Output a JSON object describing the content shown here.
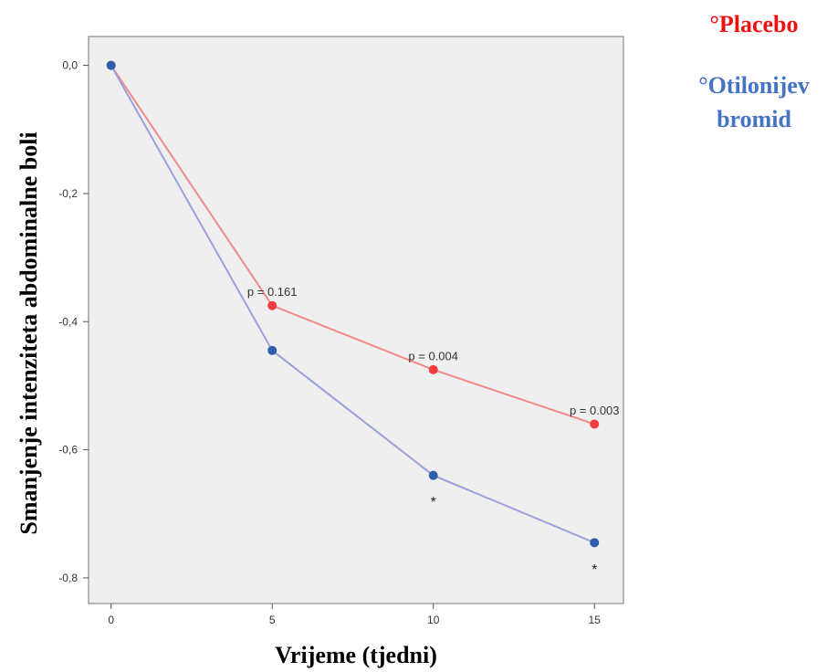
{
  "chart_data": {
    "type": "line",
    "xlabel": "Vrijeme (tjedni)",
    "ylabel": "Smanjenje intenziteta abdominalne boli",
    "x": [
      0,
      5,
      10,
      15
    ],
    "x_ticks": [
      "0",
      "5",
      "10",
      "15"
    ],
    "y_ticks": [
      "0,0",
      "-0,2",
      "-0,4",
      "-0,6",
      "-0,8"
    ],
    "y_tick_values": [
      0,
      -0.2,
      -0.4,
      -0.6,
      -0.8
    ],
    "xlim": [
      -0.7,
      15.9
    ],
    "ylim": [
      -0.84,
      0.045
    ],
    "grid": false,
    "legend_position": "top-right",
    "series": [
      {
        "name": "°Placebo",
        "color": "#f03c3c",
        "line_color": "#f08a8a",
        "values": [
          0.0,
          -0.375,
          -0.475,
          -0.56
        ]
      },
      {
        "name": "°Otilonijev bromid",
        "color": "#2f5faa",
        "line_color": "#9aa0dc",
        "values": [
          0.0,
          -0.445,
          -0.64,
          -0.745
        ]
      }
    ],
    "annotations": [
      {
        "text": "p = 0.161",
        "x": 5,
        "y": -0.36
      },
      {
        "text": "p = 0.004",
        "x": 10,
        "y": -0.46
      },
      {
        "text": "p = 0.003",
        "x": 15,
        "y": -0.545
      },
      {
        "text": "*",
        "x": 10,
        "y": -0.675
      },
      {
        "text": "*",
        "x": 15,
        "y": -0.78
      }
    ]
  },
  "legend": {
    "placebo": "°Placebo",
    "otilonium": "°Otilonijev bromid",
    "placebo_color": "#ee1111",
    "otilonium_color": "#4472c4"
  }
}
